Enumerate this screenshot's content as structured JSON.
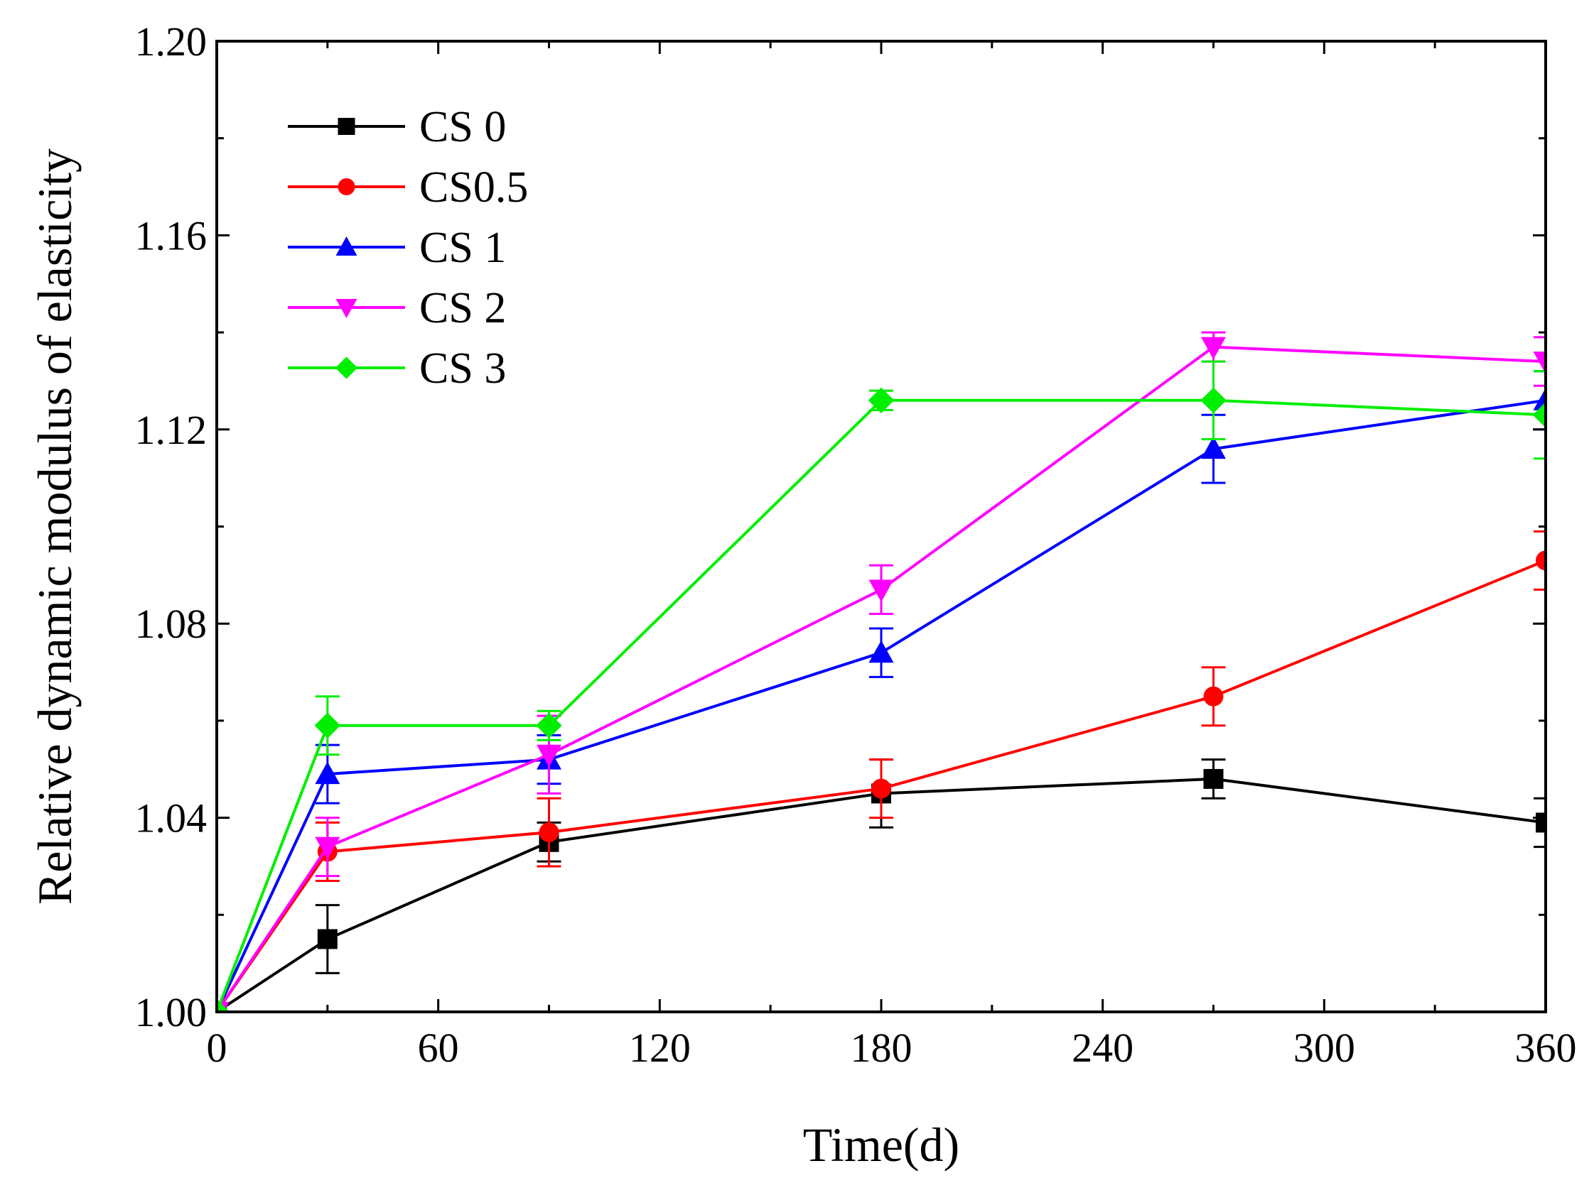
{
  "chart_data": {
    "type": "line",
    "title": "",
    "xlabel": "Time(d)",
    "ylabel": "Relative dynamic modulus of elasticity",
    "xlim": [
      0,
      360
    ],
    "ylim": [
      1.0,
      1.2
    ],
    "x_ticks": [
      0,
      60,
      120,
      180,
      240,
      300,
      360
    ],
    "x_tick_labels": [
      "0",
      "60",
      "120",
      "180",
      "240",
      "300",
      "360"
    ],
    "y_ticks": [
      1.0,
      1.04,
      1.08,
      1.12,
      1.16,
      1.2
    ],
    "y_tick_labels": [
      "1.00",
      "1.04",
      "1.08",
      "1.12",
      "1.16",
      "1.20"
    ],
    "grid": false,
    "legend_position": "top-left",
    "x": [
      0,
      30,
      90,
      180,
      270,
      360
    ],
    "series": [
      {
        "name": "CS 0",
        "color": "#000000",
        "marker": "square",
        "values": [
          1.0,
          1.015,
          1.035,
          1.045,
          1.048,
          1.039
        ],
        "errors": [
          0,
          0.007,
          0.004,
          0.007,
          0.004,
          0.005
        ]
      },
      {
        "name": "CS0.5",
        "color": "#ff0000",
        "marker": "circle",
        "values": [
          1.0,
          1.033,
          1.037,
          1.046,
          1.065,
          1.093
        ],
        "errors": [
          0,
          0.006,
          0.007,
          0.006,
          0.006,
          0.006
        ]
      },
      {
        "name": "CS 1",
        "color": "#0000ff",
        "marker": "triangle-up",
        "values": [
          1.0,
          1.049,
          1.052,
          1.074,
          1.116,
          1.126
        ],
        "errors": [
          0,
          0.006,
          0.005,
          0.005,
          0.007,
          0.006
        ]
      },
      {
        "name": "CS 2",
        "color": "#ff00ff",
        "marker": "triangle-down",
        "values": [
          1.0,
          1.034,
          1.053,
          1.087,
          1.137,
          1.134
        ],
        "errors": [
          0,
          0.006,
          0.008,
          0.005,
          0.003,
          0.005
        ]
      },
      {
        "name": "CS 3",
        "color": "#00ee00",
        "marker": "diamond",
        "values": [
          1.0,
          1.059,
          1.059,
          1.126,
          1.126,
          1.123
        ],
        "errors": [
          0,
          0.006,
          0.003,
          0.002,
          0.008,
          0.009
        ]
      }
    ]
  }
}
